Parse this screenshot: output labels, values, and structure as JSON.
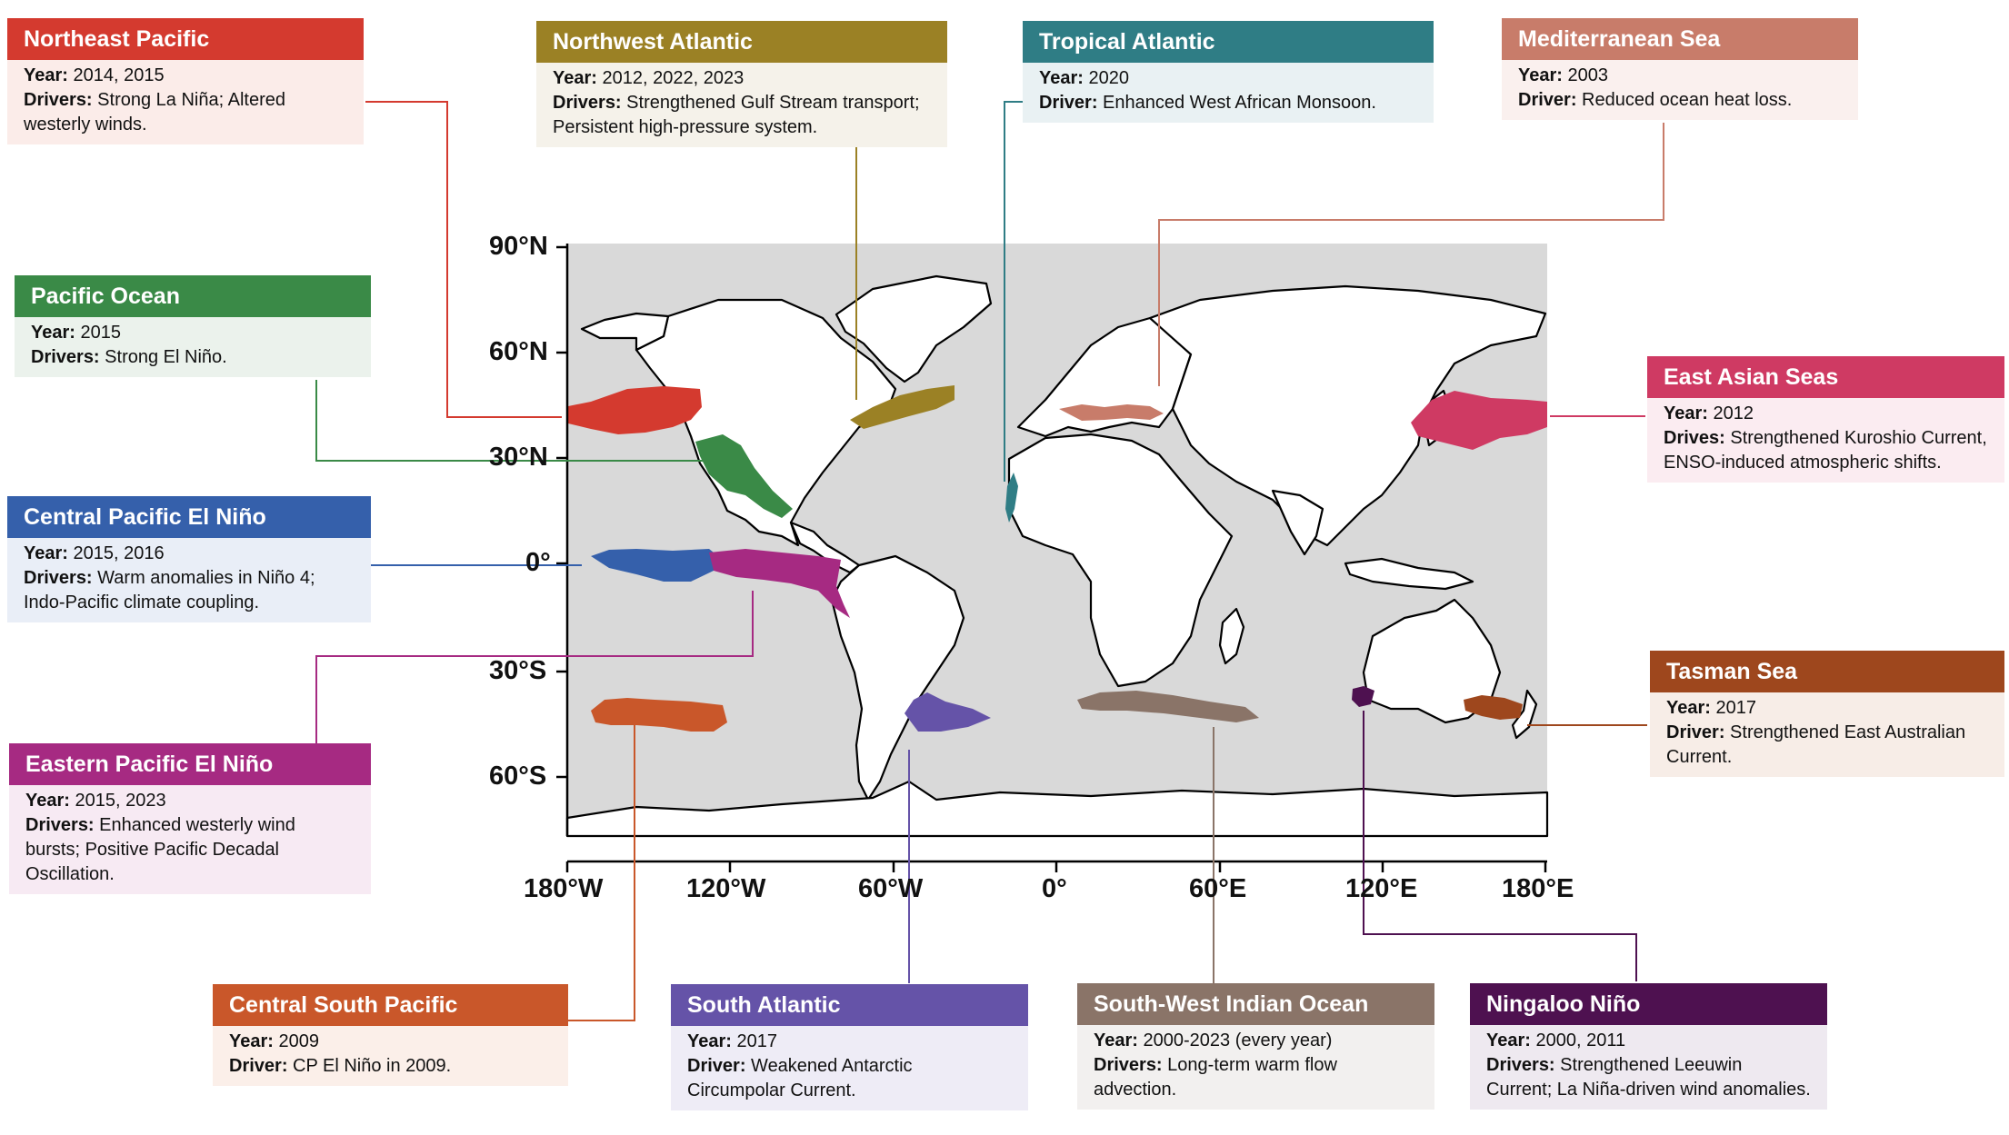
{
  "axes": {
    "lat_ticks": [
      "90°N",
      "60°N",
      "30°N",
      "0°",
      "30°S",
      "60°S"
    ],
    "lon_ticks": [
      "180°W",
      "120°W",
      "60°W",
      "0°",
      "60°E",
      "120°E",
      "180°E"
    ]
  },
  "regions": [
    {
      "id": "northeast-pacific",
      "title": "Northeast Pacific",
      "color": "#d43a2f",
      "bg": "#fbece9",
      "year_label": "Year:",
      "year": "2014, 2015",
      "drivers_label": "Drivers:",
      "drivers": "Strong La Niña; Altered westerly winds."
    },
    {
      "id": "northwest-atlantic",
      "title": "Northwest Atlantic",
      "color": "#9b8125",
      "bg": "#f5f2ea",
      "year_label": "Year:",
      "year": "2012, 2022, 2023",
      "drivers_label": "Drivers:",
      "drivers": "Strengthened Gulf Stream transport; Persistent high-pressure system."
    },
    {
      "id": "tropical-atlantic",
      "title": "Tropical Atlantic",
      "color": "#2f7d85",
      "bg": "#e9f1f3",
      "year_label": "Year:",
      "year": "2020",
      "drivers_label": "Driver:",
      "drivers": "Enhanced West African Monsoon."
    },
    {
      "id": "mediterranean-sea",
      "title": "Mediterranean Sea",
      "color": "#c87c6a",
      "bg": "#faf0ee",
      "year_label": "Year:",
      "year": "2003",
      "drivers_label": "Driver:",
      "drivers": "Reduced ocean heat loss."
    },
    {
      "id": "pacific-ocean",
      "title": "Pacific Ocean",
      "color": "#3a8a47",
      "bg": "#ebf2ec",
      "year_label": "Year:",
      "year": "2015",
      "drivers_label": "Drivers:",
      "drivers": "Strong El Niño."
    },
    {
      "id": "east-asian-seas",
      "title": "East Asian Seas",
      "color": "#cf3a63",
      "bg": "#fbecf1",
      "year_label": "Year:",
      "year": "2012",
      "drivers_label": "Drives:",
      "drivers": "Strengthened Kuroshio Current, ENSO-induced atmospheric shifts."
    },
    {
      "id": "central-pacific-el-nino",
      "title": "Central Pacific El Niño",
      "color": "#3560ab",
      "bg": "#e9eef7",
      "year_label": "Year:",
      "year": "2015, 2016",
      "drivers_label": "Drivers:",
      "drivers": "Warm anomalies in Niño 4; Indo-Pacific climate coupling."
    },
    {
      "id": "eastern-pacific-el-nino",
      "title": "Eastern Pacific El Niño",
      "color": "#a62a82",
      "bg": "#f7eaf3",
      "year_label": "Year:",
      "year": "2015, 2023",
      "drivers_label": "Drivers:",
      "drivers": "Enhanced westerly wind bursts; Positive Pacific Decadal Oscillation."
    },
    {
      "id": "tasman-sea",
      "title": "Tasman Sea",
      "color": "#9e471d",
      "bg": "#f7ede7",
      "year_label": "Year:",
      "year": "2017",
      "drivers_label": "Driver:",
      "drivers": "Strengthened East Australian Current."
    },
    {
      "id": "central-south-pacific",
      "title": "Central South Pacific",
      "color": "#c9572a",
      "bg": "#fbefe9",
      "year_label": "Year:",
      "year": "2009",
      "drivers_label": "Driver:",
      "drivers": "CP El Niño in 2009."
    },
    {
      "id": "south-atlantic",
      "title": "South Atlantic",
      "color": "#6553a8",
      "bg": "#eeecf6",
      "year_label": "Year:",
      "year": "2017",
      "drivers_label": "Driver:",
      "drivers": "Weakened Antarctic Circumpolar Current."
    },
    {
      "id": "south-west-indian-ocean",
      "title": "South-West Indian Ocean",
      "color": "#8a7468",
      "bg": "#f2f0ef",
      "year_label": "Year:",
      "year": "2000-2023 (every year)",
      "drivers_label": "Drivers:",
      "drivers": "Long-term warm flow advection."
    },
    {
      "id": "ningaloo-nino",
      "title": "Ningaloo Niño",
      "color": "#4e1150",
      "bg": "#eee9f0",
      "year_label": "Year:",
      "year": "2000, 2011",
      "drivers_label": "Drivers:",
      "drivers": "Strengthened Leeuwin Current; La Niña-driven wind anomalies."
    }
  ],
  "colors": {
    "ocean": "#d9d9d9",
    "land": "#ffffff",
    "coastline": "#000000"
  }
}
